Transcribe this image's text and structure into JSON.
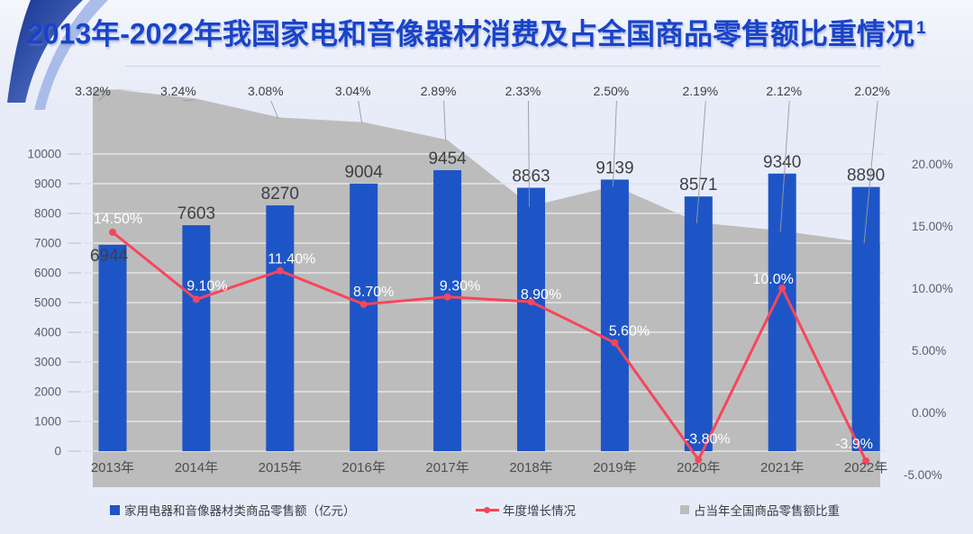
{
  "page": {
    "background": "#e8ecf8"
  },
  "header": {
    "title": "2013年-2022年我国家电和音像器材消费及占全国商品零售额比重情况",
    "superscript": "1"
  },
  "colors": {
    "bar": "#1e55c6",
    "line": "#f8455c",
    "area": "#bcbcbc",
    "title": "#1a43c8",
    "axis_text": "#5d6068",
    "label_text": "#3d3f45",
    "x_label_text": "#4c4e54",
    "line_label_text": "#ffffff",
    "grid_base": "#d7dbec",
    "grid_on_area": "rgba(255,255,255,0.75)",
    "leader_line": "#979aa0"
  },
  "chart_data": {
    "type": "combo",
    "title": "2013年-2022年我国家电和音像器材消费及占全国商品零售额比重情况",
    "categories": [
      "2013年",
      "2014年",
      "2015年",
      "2016年",
      "2017年",
      "2018年",
      "2019年",
      "2020年",
      "2021年",
      "2022年"
    ],
    "series": [
      {
        "name": "家用电器和音像器材类商品零售额（亿元）",
        "type": "bar",
        "axis": "left",
        "values": [
          6944,
          7603,
          8270,
          9004,
          9454,
          8863,
          9139,
          8571,
          9340,
          8890
        ],
        "labels": [
          "6944",
          "7603",
          "8270",
          "9004",
          "9454",
          "8863",
          "9139",
          "8571",
          "9340",
          "8890"
        ]
      },
      {
        "name": "年度增长情况",
        "type": "line",
        "axis": "right",
        "values": [
          14.5,
          9.1,
          11.4,
          8.7,
          9.3,
          8.9,
          5.6,
          -3.8,
          10.0,
          -3.9
        ],
        "labels": [
          "14.50%",
          "9.10%",
          "11.40%",
          "8.70%",
          "9.30%",
          "8.90%",
          "5.60%",
          "-3.80%",
          "10.0%",
          "-3.9%"
        ]
      },
      {
        "name": "占当年全国商品零售额比重",
        "type": "area",
        "axis": "hidden-percent",
        "values": [
          3.32,
          3.24,
          3.08,
          3.04,
          2.89,
          2.33,
          2.5,
          2.19,
          2.12,
          2.02
        ],
        "labels": [
          "3.32%",
          "3.24%",
          "3.08%",
          "3.04%",
          "2.89%",
          "2.33%",
          "2.50%",
          "2.19%",
          "2.12%",
          "2.02%"
        ]
      }
    ],
    "left_axis": {
      "min": 0,
      "max": 10000,
      "ticks": [
        "0",
        "1000",
        "2000",
        "3000",
        "4000",
        "5000",
        "6000",
        "7000",
        "8000",
        "9000",
        "10000"
      ]
    },
    "right_axis": {
      "min": -5,
      "max": 20,
      "ticks": [
        "-5.00%",
        "0.00%",
        "5.00%",
        "10.00%",
        "15.00%",
        "20.00%"
      ]
    },
    "grid": true,
    "legend_position": "bottom",
    "legend": [
      {
        "label": "家用电器和音像器材类商品零售额（亿元）",
        "marker": "bar"
      },
      {
        "label": "年度增长情况",
        "marker": "line"
      },
      {
        "label": "占当年全国商品零售额比重",
        "marker": "area"
      }
    ]
  }
}
